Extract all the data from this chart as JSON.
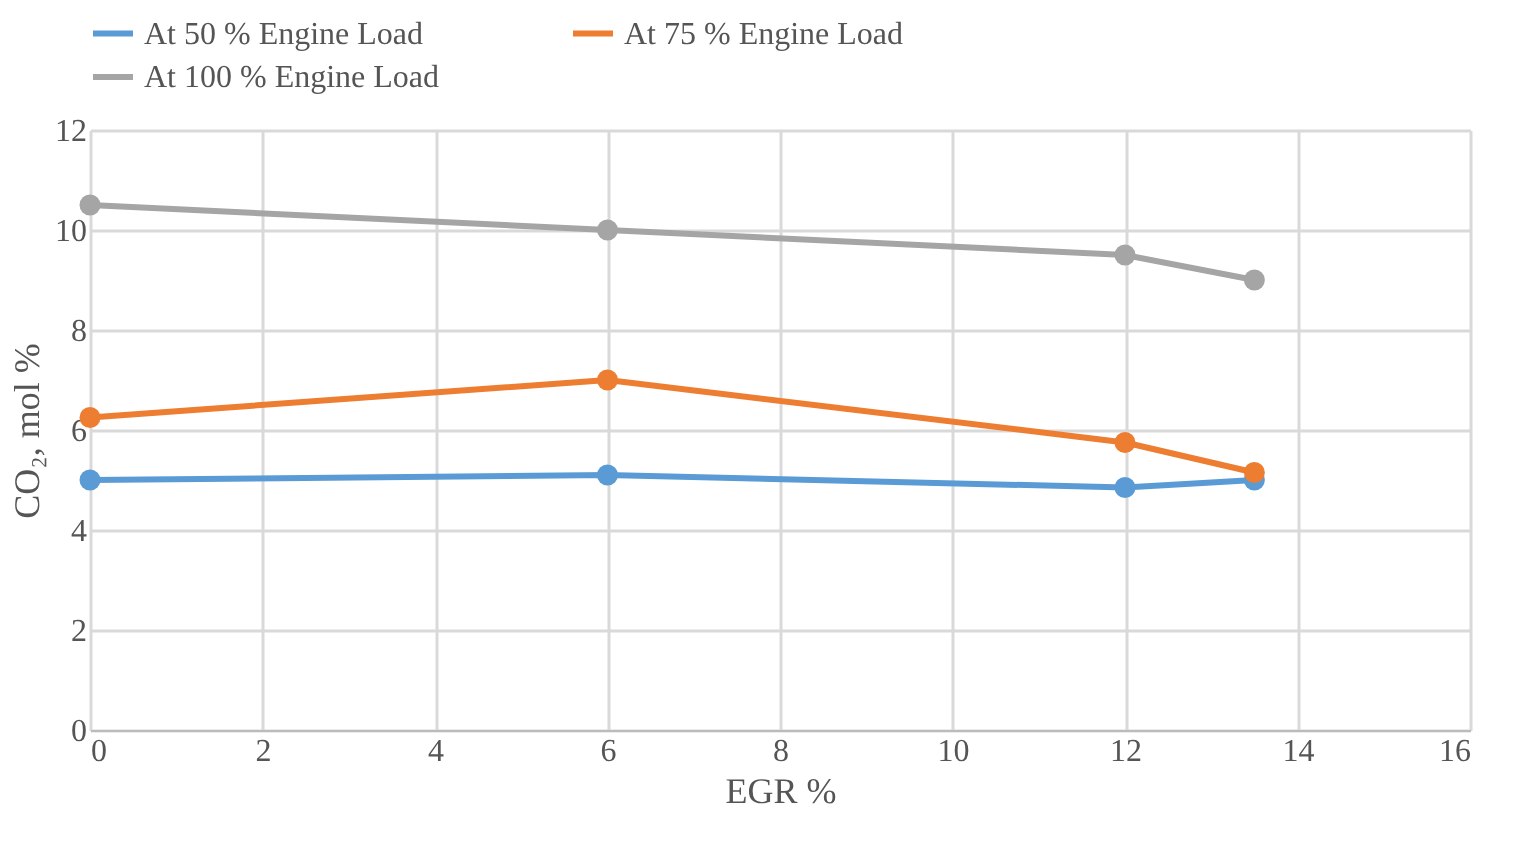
{
  "chart_data": {
    "type": "line",
    "xlabel": "EGR %",
    "ylabel": "CO₂, mol %",
    "x": [
      0,
      6,
      12,
      13.5
    ],
    "series": [
      {
        "name": "At 50 % Engine Load",
        "color": "#5b9bd5",
        "values": [
          5.0,
          5.1,
          4.85,
          5.0
        ]
      },
      {
        "name": "At 75 % Engine Load",
        "color": "#ed7d31",
        "values": [
          6.25,
          7.0,
          5.75,
          5.15
        ]
      },
      {
        "name": "At 100 % Engine Load",
        "color": "#a5a5a5",
        "values": [
          10.5,
          10.0,
          9.5,
          9.0
        ]
      }
    ],
    "xlim": [
      0,
      16
    ],
    "xticks": [
      0,
      2,
      4,
      6,
      8,
      10,
      12,
      14,
      16
    ],
    "ylim": [
      0,
      12
    ],
    "yticks": [
      0,
      2,
      4,
      6,
      8,
      10,
      12
    ],
    "grid": true,
    "legend": "top left",
    "marker": "circle",
    "line_style": "solid"
  }
}
